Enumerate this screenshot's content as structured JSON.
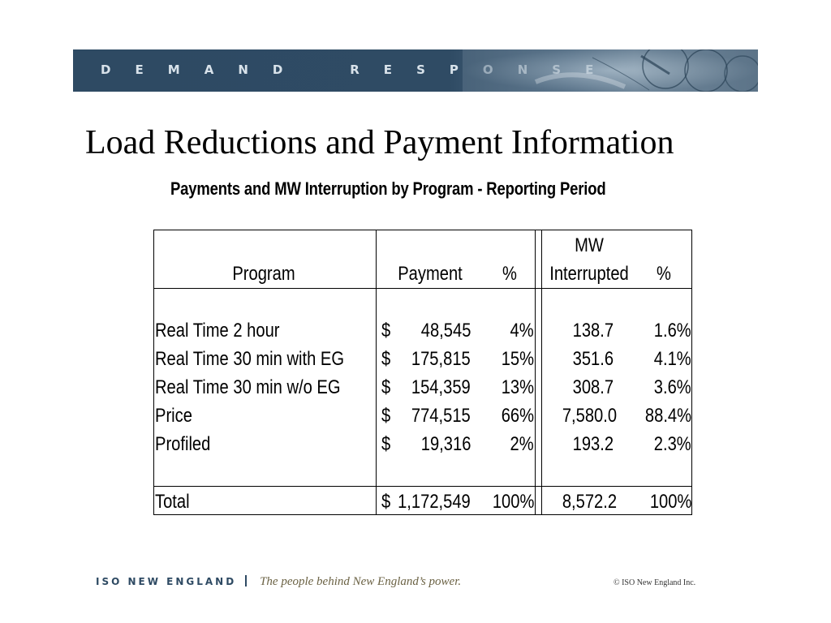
{
  "banner": {
    "title": "D E M A N D    R E S P O N S E"
  },
  "page": {
    "title": "Load Reductions and Payment Information",
    "subtitle": "Payments and MW Interruption by Program  - Reporting Period"
  },
  "table": {
    "headers": {
      "program": "Program",
      "payment": "Payment",
      "payment_pct": "%",
      "mw_line1": "MW",
      "mw_line2": "Interrupted",
      "mw_pct": "%"
    },
    "rows": [
      {
        "program": "Real Time 2 hour",
        "currency": "$",
        "payment": "48,545",
        "payment_pct": "4%",
        "mw": "138.7",
        "mw_pct": "1.6%"
      },
      {
        "program": "Real Time 30 min with EG",
        "currency": "$",
        "payment": "175,815",
        "payment_pct": "15%",
        "mw": "351.6",
        "mw_pct": "4.1%"
      },
      {
        "program": "Real Time 30 min w/o EG",
        "currency": "$",
        "payment": "154,359",
        "payment_pct": "13%",
        "mw": "308.7",
        "mw_pct": "3.6%"
      },
      {
        "program": "Price",
        "currency": "$",
        "payment": "774,515",
        "payment_pct": "66%",
        "mw": "7,580.0",
        "mw_pct": "88.4%"
      },
      {
        "program": "Profiled",
        "currency": "$",
        "payment": "19,316",
        "payment_pct": "2%",
        "mw": "193.2",
        "mw_pct": "2.3%"
      }
    ],
    "total": {
      "program": "Total",
      "currency": "$",
      "payment": "1,172,549",
      "payment_pct": "100%",
      "mw": "8,572.2",
      "mw_pct": "100%"
    }
  },
  "footer": {
    "brand": "ISO NEW ENGLAND",
    "tagline": "The people behind New England’s power.",
    "copyright": "© ISO New England Inc."
  },
  "colors": {
    "banner": "#2e4a63",
    "footer_brand": "#2e4a63",
    "tagline": "#6b6244"
  }
}
